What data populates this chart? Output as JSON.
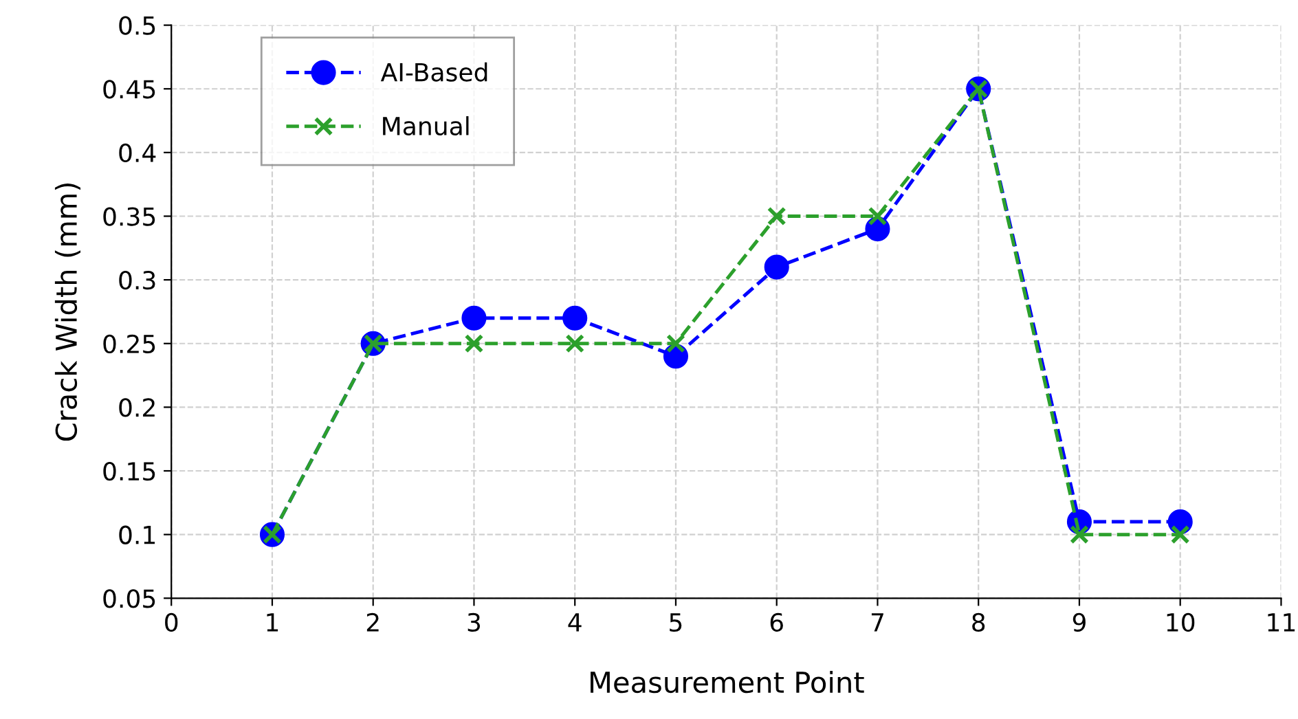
{
  "chart_data": {
    "type": "line",
    "xlabel": "Measurement Point",
    "ylabel": "Crack Width (mm)",
    "x": [
      1,
      2,
      3,
      4,
      5,
      6,
      7,
      8,
      9,
      10
    ],
    "series": [
      {
        "name": "AI-Based",
        "color": "#0000ff",
        "marker": "circle",
        "values": [
          0.1,
          0.25,
          0.27,
          0.27,
          0.24,
          0.31,
          0.34,
          0.45,
          0.11,
          0.11
        ]
      },
      {
        "name": "Manual",
        "color": "#2ca02c",
        "marker": "cross",
        "values": [
          0.1,
          0.25,
          0.25,
          0.25,
          0.25,
          0.35,
          0.35,
          0.45,
          0.1,
          0.1
        ]
      }
    ],
    "line_style": "dashed",
    "xlim": [
      0,
      11
    ],
    "xticks": [
      0,
      1,
      2,
      3,
      4,
      5,
      6,
      7,
      8,
      9,
      10,
      11
    ],
    "ylim": [
      0.05,
      0.5
    ],
    "yticks": [
      0.05,
      0.1,
      0.15,
      0.2,
      0.25,
      0.3,
      0.35,
      0.4,
      0.45,
      0.5
    ],
    "grid": true,
    "legend": "top left"
  }
}
